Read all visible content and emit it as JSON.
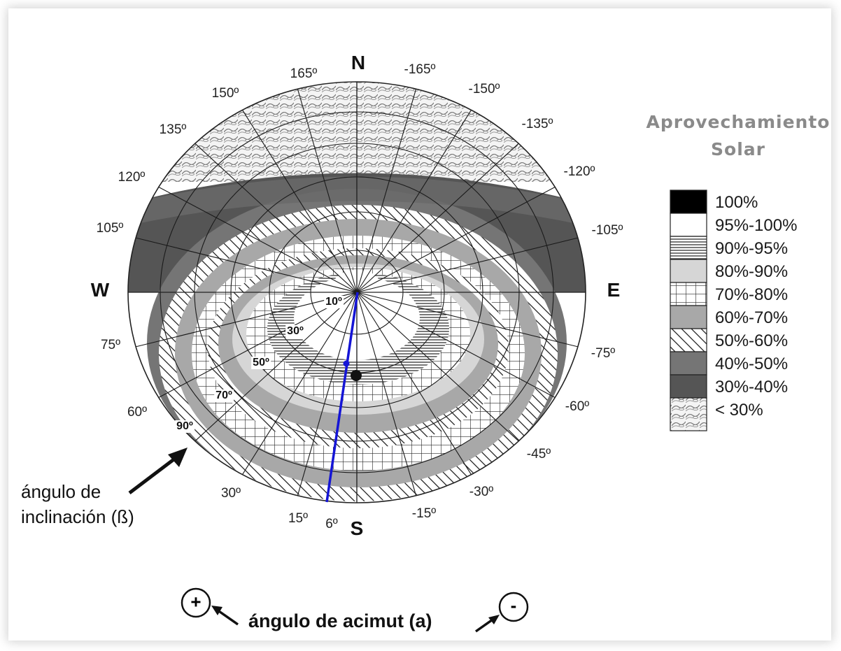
{
  "compass": {
    "north": "N",
    "south": "S",
    "west": "W",
    "east": "E"
  },
  "azimuth_labels": [
    {
      "text": "165º"
    },
    {
      "text": "150º"
    },
    {
      "text": "135º"
    },
    {
      "text": "120º"
    },
    {
      "text": "105º"
    },
    {
      "text": "75º"
    },
    {
      "text": "60º"
    },
    {
      "text": "30º"
    },
    {
      "text": "15º"
    },
    {
      "text": "6º"
    },
    {
      "text": "-165º"
    },
    {
      "text": "-150º"
    },
    {
      "text": "-135º"
    },
    {
      "text": "-120º"
    },
    {
      "text": "-105º"
    },
    {
      "text": "-75º"
    },
    {
      "text": "-60º"
    },
    {
      "text": "-45º"
    },
    {
      "text": "-30º"
    },
    {
      "text": "-15º"
    }
  ],
  "tilt_labels": [
    {
      "text": "10º"
    },
    {
      "text": "30º"
    },
    {
      "text": "50º"
    },
    {
      "text": "70º"
    },
    {
      "text": "90º"
    }
  ],
  "legend": {
    "title_line1": "Aprovechamiento",
    "title_line2": "Solar",
    "items": [
      {
        "label": "100%",
        "pattern": "black"
      },
      {
        "label": "95%-100%",
        "pattern": "white"
      },
      {
        "label": "90%-95%",
        "pattern": "horizontal-lines"
      },
      {
        "label": "80%-90%",
        "pattern": "light-gray"
      },
      {
        "label": "70%-80%",
        "pattern": "grid"
      },
      {
        "label": "60%-70%",
        "pattern": "medium-gray"
      },
      {
        "label": "50%-60%",
        "pattern": "diagonal-hatch"
      },
      {
        "label": "40%-50%",
        "pattern": "dark-gray"
      },
      {
        "label": "30%-40%",
        "pattern": "darker-gray"
      },
      {
        "label": "< 30%",
        "pattern": "scale-texture"
      }
    ]
  },
  "inclination_caption": {
    "line1": "ángulo de",
    "line2": "inclinación (ß)"
  },
  "azimuth_caption": "ángulo de acimut (a)",
  "signs": {
    "plus": "+",
    "minus": "-"
  },
  "colors": {
    "selected_line": "#1515d6",
    "gray_60_70": "#a8a8a8",
    "gray_80_90": "#d6d6d6",
    "gray_40_50": "#747474",
    "gray_30_40": "#555555"
  }
}
